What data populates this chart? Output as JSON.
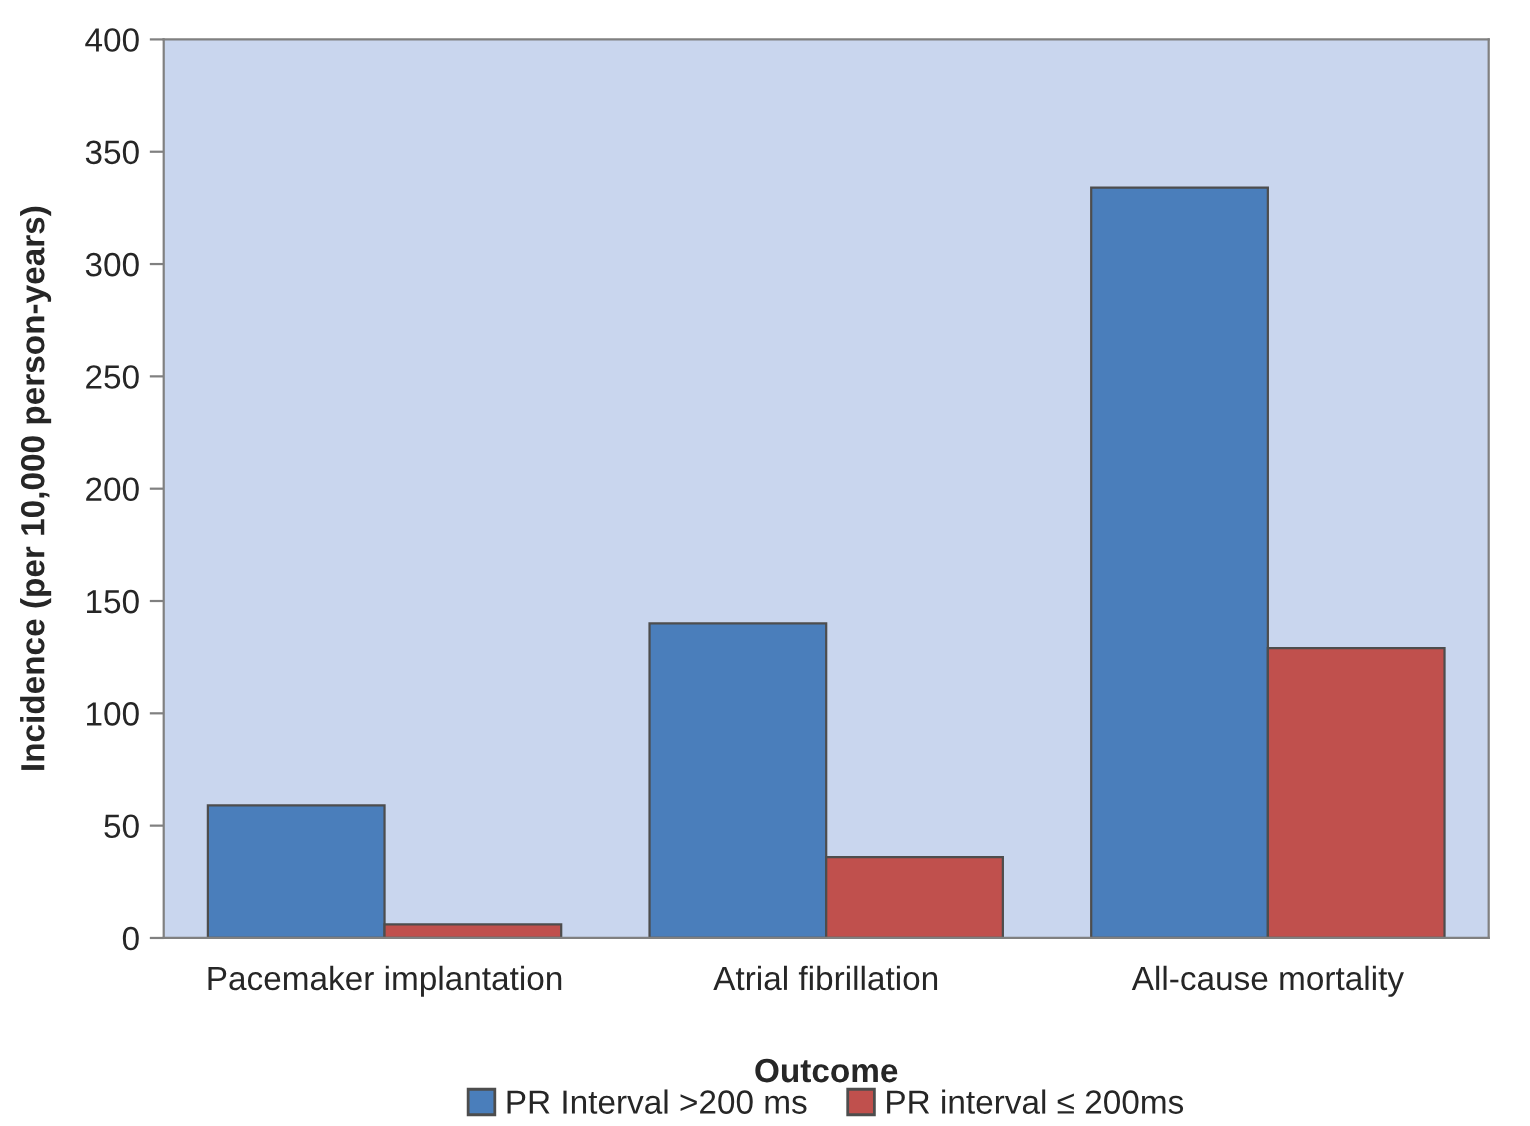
{
  "chart_data": {
    "type": "bar",
    "xlabel": "Outcome",
    "ylabel": "Incidence (per 10,000 person-years)",
    "categories": [
      "Pacemaker implantation",
      "Atrial fibrillation",
      "All-cause mortality"
    ],
    "series": [
      {
        "name": "PR Interval >200 ms",
        "color": "#4a7ebb",
        "values": [
          59,
          140,
          334
        ]
      },
      {
        "name": "PR interval ≤ 200ms",
        "color": "#c0504d",
        "values": [
          6,
          36,
          129
        ]
      }
    ],
    "ylim": [
      0,
      400
    ],
    "yticks": [
      0,
      50,
      100,
      150,
      200,
      250,
      300,
      350,
      400
    ],
    "grid": false,
    "legend": "bottom"
  }
}
